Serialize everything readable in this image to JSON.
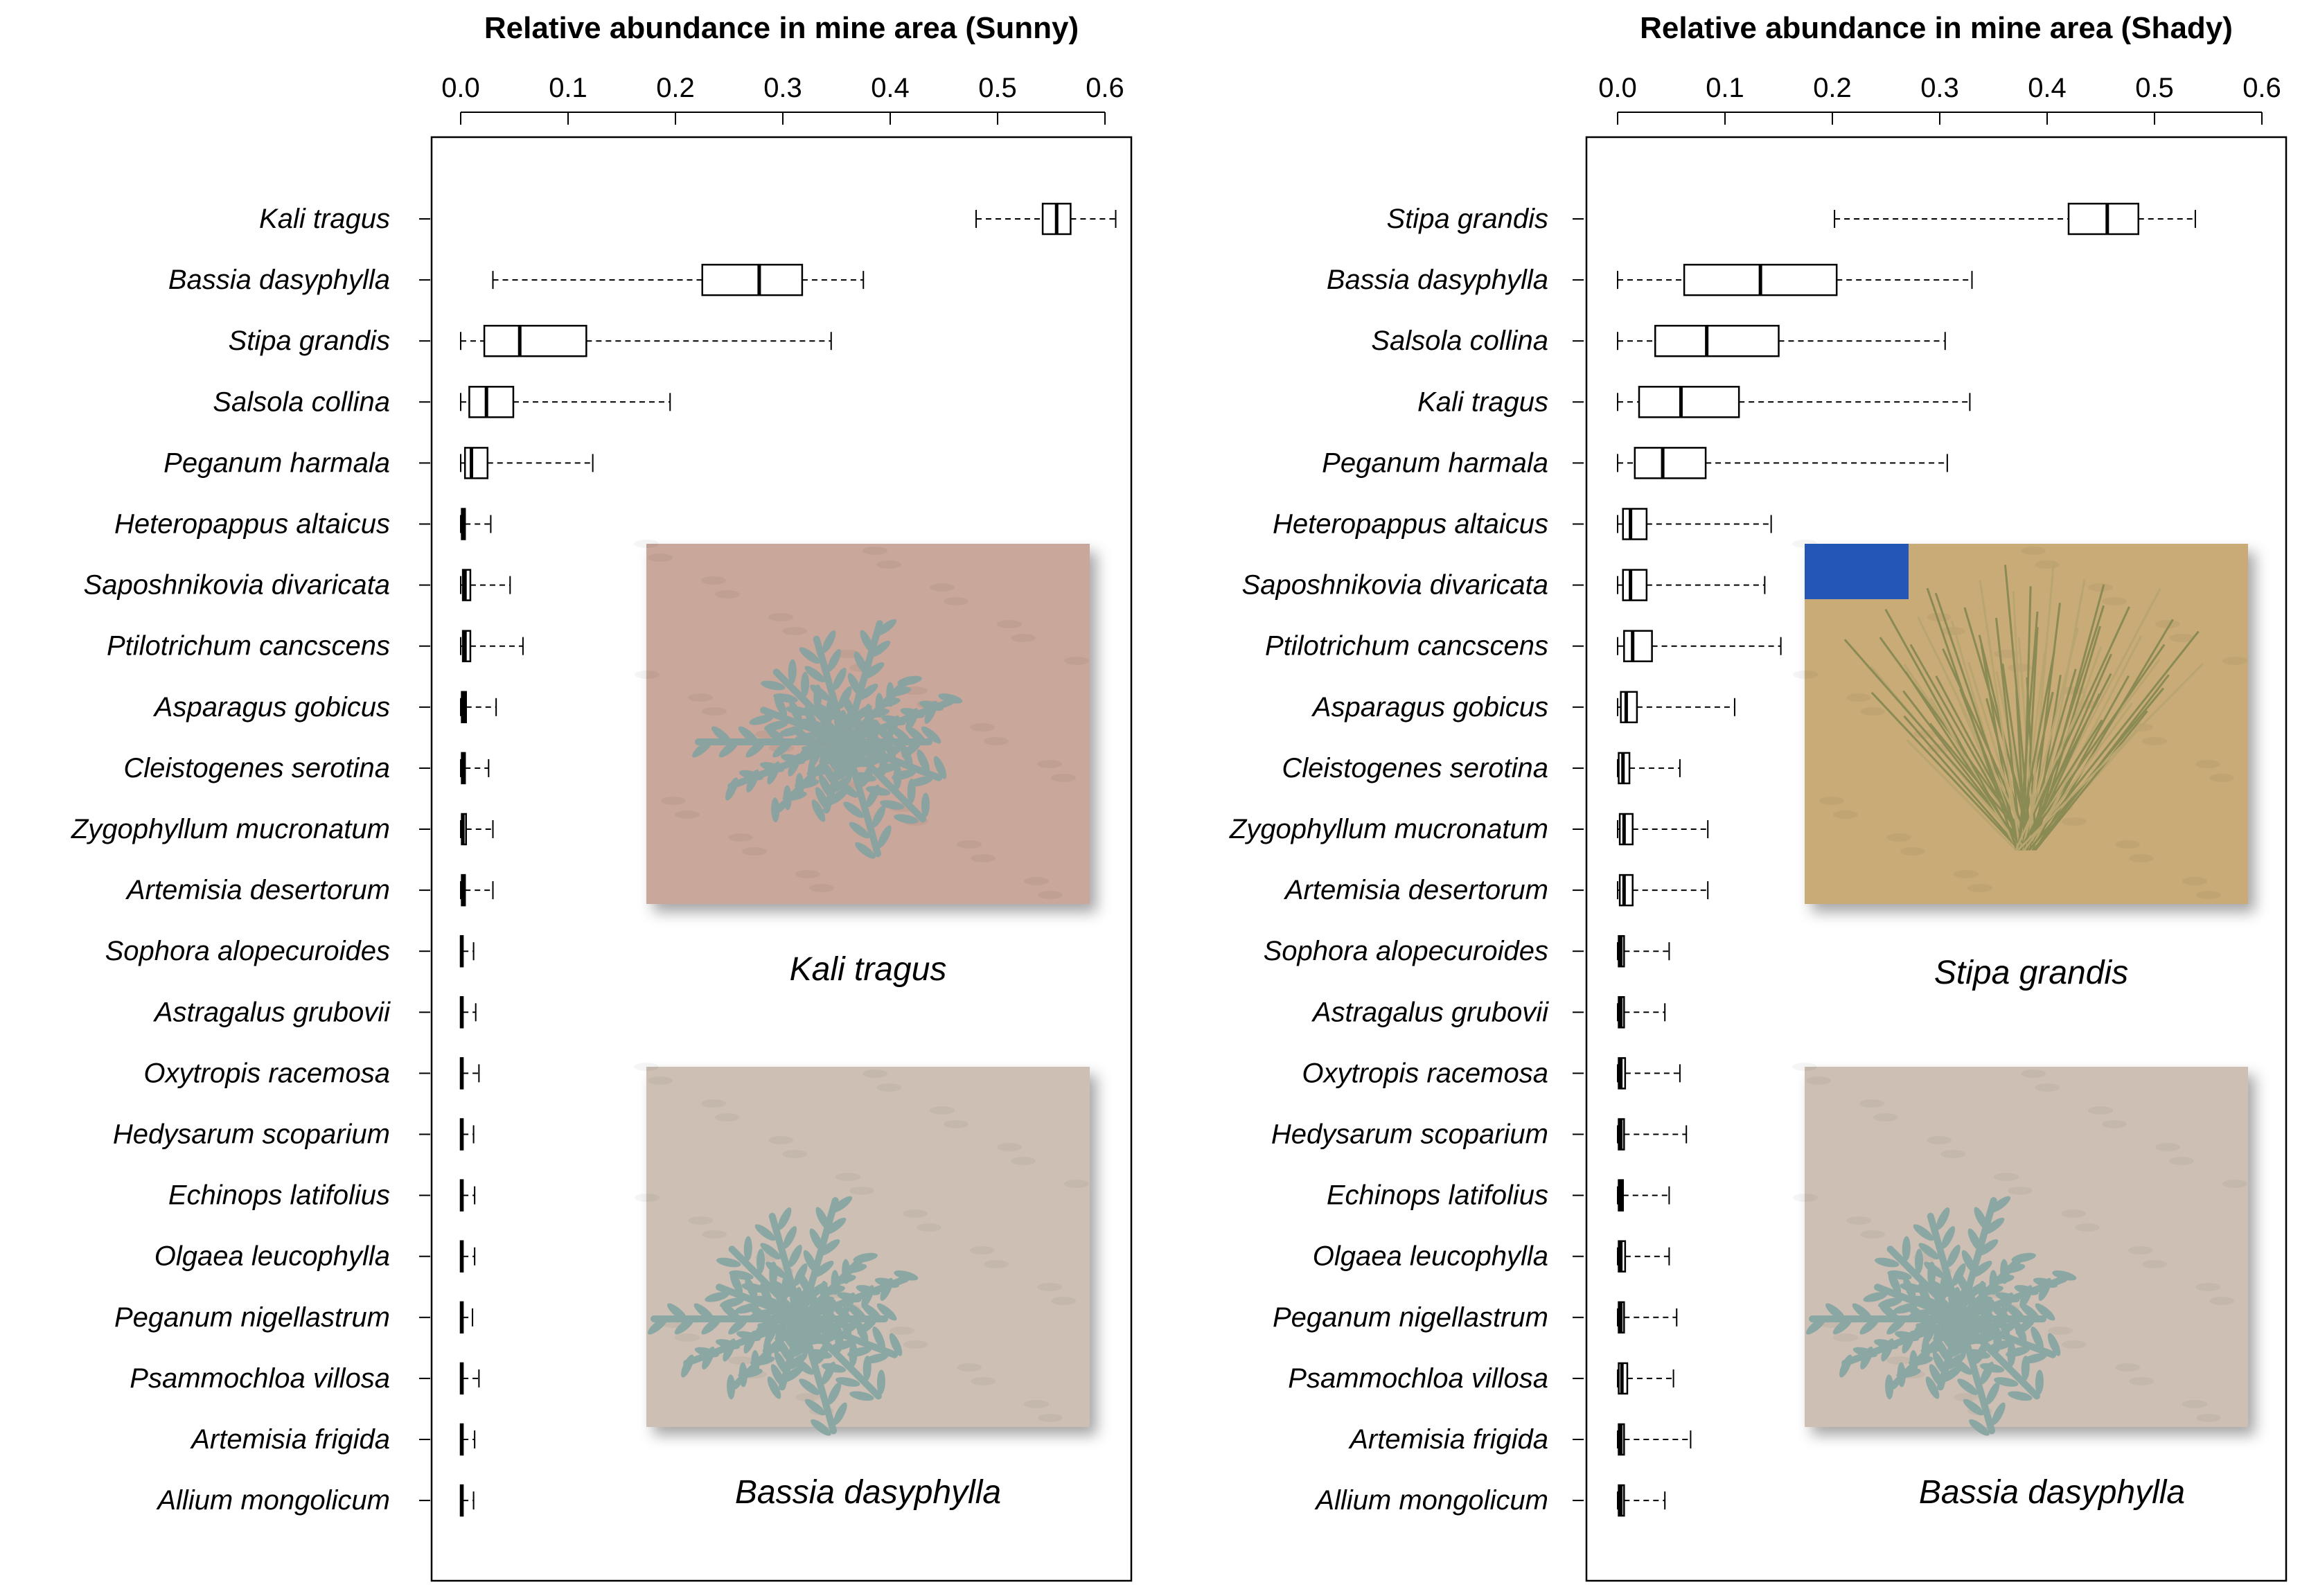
{
  "chart_data": [
    {
      "type": "boxplot",
      "orientation": "horizontal",
      "title": "Relative abundance in mine area (Sunny)",
      "xlim": [
        0,
        0.6
      ],
      "xticks": [
        "0.0",
        "0.1",
        "0.2",
        "0.3",
        "0.4",
        "0.5",
        "0.6"
      ],
      "grid": false,
      "categories": [
        "Kali tragus",
        "Bassia dasyphylla",
        "Stipa grandis",
        "Salsola collina",
        "Peganum harmala",
        "Heteropappus altaicus",
        "Saposhnikovia divaricata",
        "Ptilotrichum cancscens",
        "Asparagus gobicus",
        "Cleistogenes serotina",
        "Zygophyllum mucronatum",
        "Artemisia desertorum",
        "Sophora alopecuroides",
        "Astragalus grubovii",
        "Oxytropis racemosa",
        "Hedysarum scoparium",
        "Echinops latifolius",
        "Olgaea leucophylla",
        "Peganum nigellastrum",
        "Psammochloa villosa",
        "Artemisia frigida",
        "Allium mongolicum"
      ],
      "boxes": [
        {
          "min": 0.48,
          "q1": 0.542,
          "median": 0.555,
          "q3": 0.568,
          "max": 0.61
        },
        {
          "min": 0.03,
          "q1": 0.225,
          "median": 0.278,
          "q3": 0.318,
          "max": 0.375
        },
        {
          "min": 0.0,
          "q1": 0.022,
          "median": 0.055,
          "q3": 0.117,
          "max": 0.345
        },
        {
          "min": 0.0,
          "q1": 0.008,
          "median": 0.024,
          "q3": 0.049,
          "max": 0.195
        },
        {
          "min": 0.0,
          "q1": 0.004,
          "median": 0.01,
          "q3": 0.025,
          "max": 0.123
        },
        {
          "min": 0.0,
          "q1": 0.001,
          "median": 0.002,
          "q3": 0.004,
          "max": 0.028
        },
        {
          "min": 0.0,
          "q1": 0.002,
          "median": 0.004,
          "q3": 0.009,
          "max": 0.046
        },
        {
          "min": 0.0,
          "q1": 0.002,
          "median": 0.004,
          "q3": 0.009,
          "max": 0.058
        },
        {
          "min": 0.0,
          "q1": 0.001,
          "median": 0.003,
          "q3": 0.005,
          "max": 0.033
        },
        {
          "min": 0.0,
          "q1": 0.001,
          "median": 0.002,
          "q3": 0.004,
          "max": 0.026
        },
        {
          "min": 0.0,
          "q1": 0.001,
          "median": 0.002,
          "q3": 0.005,
          "max": 0.03
        },
        {
          "min": 0.0,
          "q1": 0.001,
          "median": 0.002,
          "q3": 0.004,
          "max": 0.03
        },
        {
          "min": 0.0,
          "q1": 0.0,
          "median": 0.001,
          "q3": 0.002,
          "max": 0.012
        },
        {
          "min": 0.0,
          "q1": 0.0,
          "median": 0.001,
          "q3": 0.002,
          "max": 0.014
        },
        {
          "min": 0.0,
          "q1": 0.0,
          "median": 0.001,
          "q3": 0.002,
          "max": 0.017
        },
        {
          "min": 0.0,
          "q1": 0.0,
          "median": 0.001,
          "q3": 0.002,
          "max": 0.012
        },
        {
          "min": 0.0,
          "q1": 0.0,
          "median": 0.001,
          "q3": 0.002,
          "max": 0.013
        },
        {
          "min": 0.0,
          "q1": 0.0,
          "median": 0.001,
          "q3": 0.002,
          "max": 0.013
        },
        {
          "min": 0.0,
          "q1": 0.0,
          "median": 0.001,
          "q3": 0.002,
          "max": 0.011
        },
        {
          "min": 0.0,
          "q1": 0.0,
          "median": 0.001,
          "q3": 0.002,
          "max": 0.017
        },
        {
          "min": 0.0,
          "q1": 0.0,
          "median": 0.001,
          "q3": 0.002,
          "max": 0.013
        },
        {
          "min": 0.0,
          "q1": 0.0,
          "median": 0.001,
          "q3": 0.002,
          "max": 0.012
        }
      ],
      "photos": [
        {
          "caption": "Kali tragus",
          "palette": [
            "#c9a79b",
            "#8aa3a0"
          ]
        },
        {
          "caption": "Bassia dasyphylla",
          "palette": [
            "#cdbfb4",
            "#8aa7a3"
          ]
        }
      ]
    },
    {
      "type": "boxplot",
      "orientation": "horizontal",
      "title": "Relative abundance in mine area (Shady)",
      "xlim": [
        0,
        0.6
      ],
      "xticks": [
        "0.0",
        "0.1",
        "0.2",
        "0.3",
        "0.4",
        "0.5",
        "0.6"
      ],
      "grid": false,
      "categories": [
        "Stipa grandis",
        "Bassia dasyphylla",
        "Salsola collina",
        "Kali tragus",
        "Peganum harmala",
        "Heteropappus altaicus",
        "Saposhnikovia divaricata",
        "Ptilotrichum cancscens",
        "Asparagus gobicus",
        "Cleistogenes serotina",
        "Zygophyllum mucronatum",
        "Artemisia desertorum",
        "Sophora alopecuroides",
        "Astragalus grubovii",
        "Oxytropis racemosa",
        "Hedysarum scoparium",
        "Echinops latifolius",
        "Olgaea leucophylla",
        "Peganum nigellastrum",
        "Psammochloa villosa",
        "Artemisia frigida",
        "Allium mongolicum"
      ],
      "boxes": [
        {
          "min": 0.202,
          "q1": 0.42,
          "median": 0.456,
          "q3": 0.485,
          "max": 0.538
        },
        {
          "min": 0.0,
          "q1": 0.062,
          "median": 0.133,
          "q3": 0.204,
          "max": 0.33
        },
        {
          "min": 0.0,
          "q1": 0.035,
          "median": 0.083,
          "q3": 0.15,
          "max": 0.305
        },
        {
          "min": 0.0,
          "q1": 0.02,
          "median": 0.059,
          "q3": 0.113,
          "max": 0.328
        },
        {
          "min": 0.0,
          "q1": 0.016,
          "median": 0.042,
          "q3": 0.082,
          "max": 0.307
        },
        {
          "min": 0.0,
          "q1": 0.005,
          "median": 0.012,
          "q3": 0.027,
          "max": 0.143
        },
        {
          "min": 0.0,
          "q1": 0.005,
          "median": 0.012,
          "q3": 0.027,
          "max": 0.137
        },
        {
          "min": 0.0,
          "q1": 0.006,
          "median": 0.014,
          "q3": 0.032,
          "max": 0.152
        },
        {
          "min": 0.0,
          "q1": 0.003,
          "median": 0.008,
          "q3": 0.018,
          "max": 0.109
        },
        {
          "min": 0.0,
          "q1": 0.001,
          "median": 0.005,
          "q3": 0.011,
          "max": 0.058
        },
        {
          "min": 0.0,
          "q1": 0.002,
          "median": 0.006,
          "q3": 0.014,
          "max": 0.084
        },
        {
          "min": 0.0,
          "q1": 0.002,
          "median": 0.006,
          "q3": 0.014,
          "max": 0.084
        },
        {
          "min": 0.0,
          "q1": 0.001,
          "median": 0.003,
          "q3": 0.006,
          "max": 0.048
        },
        {
          "min": 0.0,
          "q1": 0.001,
          "median": 0.003,
          "q3": 0.006,
          "max": 0.044
        },
        {
          "min": 0.0,
          "q1": 0.001,
          "median": 0.003,
          "q3": 0.007,
          "max": 0.058
        },
        {
          "min": 0.0,
          "q1": 0.001,
          "median": 0.003,
          "q3": 0.006,
          "max": 0.064
        },
        {
          "min": 0.0,
          "q1": 0.001,
          "median": 0.003,
          "q3": 0.005,
          "max": 0.048
        },
        {
          "min": 0.0,
          "q1": 0.001,
          "median": 0.003,
          "q3": 0.007,
          "max": 0.048
        },
        {
          "min": 0.0,
          "q1": 0.001,
          "median": 0.003,
          "q3": 0.006,
          "max": 0.055
        },
        {
          "min": 0.0,
          "q1": 0.001,
          "median": 0.004,
          "q3": 0.009,
          "max": 0.052
        },
        {
          "min": 0.0,
          "q1": 0.001,
          "median": 0.003,
          "q3": 0.006,
          "max": 0.068
        },
        {
          "min": 0.0,
          "q1": 0.001,
          "median": 0.003,
          "q3": 0.006,
          "max": 0.044
        }
      ],
      "photos": [
        {
          "caption": "Stipa grandis",
          "palette": [
            "#c8ab76",
            "#8a8a55"
          ]
        },
        {
          "caption": "Bassia dasyphylla",
          "palette": [
            "#cdbfb4",
            "#8aa7a3"
          ]
        }
      ]
    }
  ]
}
